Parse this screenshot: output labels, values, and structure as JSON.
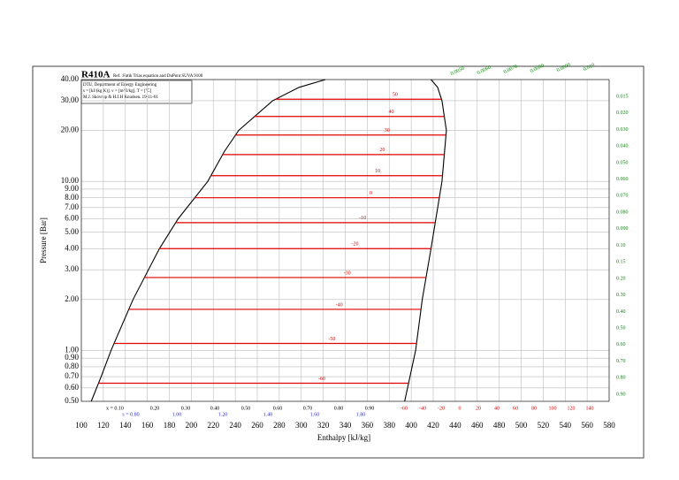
{
  "chart_data": {
    "type": "line",
    "title": "R410A",
    "subtitle": "Ref. :Fatik Trias equation and DuPont SUVA 9100",
    "notes": [
      "DTU, Department of Energy Engineering",
      "s = [kJ/(kg K)]. v = [m^3/kg]. T = [ºC]",
      "M.J. Skovrup & H.J.H Knudsen. 19-11-01"
    ],
    "x_label": "Enthalpy [kJ/kg]",
    "y_label": "Pressure [Bar]",
    "xlim": [
      100,
      580
    ],
    "xticks": [
      100,
      120,
      140,
      160,
      180,
      200,
      220,
      240,
      260,
      280,
      300,
      320,
      340,
      360,
      380,
      400,
      420,
      440,
      460,
      480,
      500,
      520,
      540,
      560,
      580
    ],
    "ylim": [
      0.5,
      40
    ],
    "log_y": true,
    "grid": true,
    "yticks": [
      {
        "value": 0.5,
        "label": "0.50"
      },
      {
        "value": 0.6,
        "label": "0.60"
      },
      {
        "value": 0.7,
        "label": "0.70"
      },
      {
        "value": 0.8,
        "label": "0.80"
      },
      {
        "value": 0.9,
        "label": "0.90"
      },
      {
        "value": 1,
        "label": "1.00"
      },
      {
        "value": 2,
        "label": "2.00"
      },
      {
        "value": 3,
        "label": "3.00"
      },
      {
        "value": 4,
        "label": "4.00"
      },
      {
        "value": 5,
        "label": "5.00"
      },
      {
        "value": 6,
        "label": "6.00"
      },
      {
        "value": 7,
        "label": "7.00"
      },
      {
        "value": 8,
        "label": "8.00"
      },
      {
        "value": 9,
        "label": "9.00"
      },
      {
        "value": 10,
        "label": "10.00"
      },
      {
        "value": 20,
        "label": "20.00"
      },
      {
        "value": 30,
        "label": "30.00"
      },
      {
        "value": 40,
        "label": "40.00"
      }
    ],
    "series": [
      {
        "color": "#000000",
        "x": [
          109,
          118,
          127,
          147,
          171,
          188,
          215,
          230,
          243,
          274,
          298,
          322
        ],
        "y": [
          0.5,
          0.7,
          1,
          2,
          4,
          6,
          10,
          15,
          20,
          30,
          36,
          40
        ]
      },
      {
        "color": "#000000",
        "x": [
          394,
          404,
          410,
          418,
          428,
          432,
          428,
          424,
          418
        ],
        "y": [
          0.5,
          1,
          2,
          4,
          10,
          20,
          30,
          36,
          40
        ]
      }
    ],
    "saturation": {
      "color": "#e00000",
      "temperatures": [
        -60,
        -50,
        -40,
        -30,
        -20,
        -10,
        0,
        10,
        20,
        30,
        40,
        50
      ],
      "pressures": [
        0.64,
        1.1,
        1.75,
        2.7,
        4.0,
        5.7,
        8.0,
        10.8,
        14.4,
        18.8,
        24.2,
        30.6
      ]
    },
    "quality_labels": [
      "x = 0.10",
      "0.20",
      "0.30",
      "0.40",
      "0.50",
      "0.60",
      "0.70",
      "0.80",
      "0.90"
    ],
    "entropy_labels": [
      "s = 0.80",
      "1.00",
      "1.20",
      "1.40",
      "1.60",
      "1.80"
    ],
    "temperature_labels": [
      -60,
      -40,
      -20,
      0,
      20,
      40,
      60,
      80,
      100,
      120,
      140
    ],
    "volume_labels_right": [
      "0.015",
      "0.020",
      "0.030",
      "0.040",
      "0.050",
      "0.060",
      "0.070",
      "0.080",
      "0.090",
      "0.10",
      "0.15",
      "0.20",
      "0.30",
      "0.40",
      "0.50",
      "0.60",
      "0.70",
      "0.80",
      "0.90"
    ],
    "volume_labels_top": [
      "0.0050",
      "0.0060",
      "0.0070",
      "0.0080",
      "0.0090",
      "0.010"
    ]
  }
}
